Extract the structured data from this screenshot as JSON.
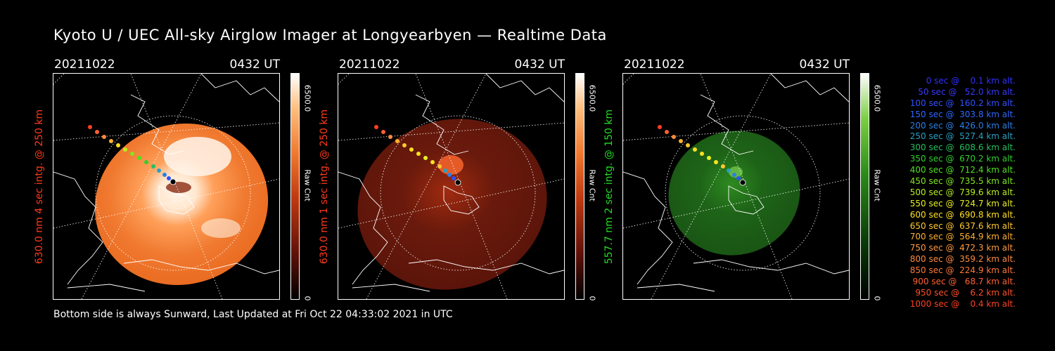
{
  "title": "Kyoto U / UEC All-sky Airglow Imager at Longyearbyen — Realtime Data",
  "footer": "Bottom side is always Sunward, Last Updated at Fri Oct 22 04:33:02 2021 in UTC",
  "panels": [
    {
      "date": "20211022",
      "time": "0432 UT",
      "ylabel": "630.0 nm 4 sec intg. @ 250 km",
      "ylabel_color": "#ff3a1a",
      "cbar_max": "6500.0",
      "cbar_unit": "Raw Cnt",
      "cbar_min": "0",
      "theme": "orange"
    },
    {
      "date": "20211022",
      "time": "0432 UT",
      "ylabel": "630.0 nm 1 sec intg. @ 250 km",
      "ylabel_color": "#ff3a1a",
      "cbar_max": "6500.0",
      "cbar_unit": "Raw Cnt",
      "cbar_min": "0",
      "theme": "darkred"
    },
    {
      "date": "20211022",
      "time": "0432 UT",
      "ylabel": "557.7 nm 2 sec intg. @ 150 km",
      "ylabel_color": "#22dd22",
      "cbar_max": "6500.0",
      "cbar_unit": "Raw Cnt",
      "cbar_min": "0",
      "theme": "green"
    }
  ],
  "legend": [
    {
      "text": "0 sec @    0.1 km alt.",
      "color": "#3030ff"
    },
    {
      "text": "50 sec @   52.0 km alt.",
      "color": "#3838ff"
    },
    {
      "text": "100 sec @  160.2 km alt.",
      "color": "#3050ff"
    },
    {
      "text": "150 sec @  303.8 km alt.",
      "color": "#3068ff"
    },
    {
      "text": "200 sec @  426.0 km alt.",
      "color": "#2c7fe6"
    },
    {
      "text": "250 sec @  527.4 km alt.",
      "color": "#2aa0c0"
    },
    {
      "text": "300 sec @  608.6 km alt.",
      "color": "#22c060"
    },
    {
      "text": "350 sec @  670.2 km alt.",
      "color": "#30d030"
    },
    {
      "text": "400 sec @  712.4 km alt.",
      "color": "#50e020"
    },
    {
      "text": "450 sec @  735.5 km alt.",
      "color": "#80e820"
    },
    {
      "text": "500 sec @  739.6 km alt.",
      "color": "#b8f020"
    },
    {
      "text": "550 sec @  724.7 km alt.",
      "color": "#e8f020"
    },
    {
      "text": "600 sec @  690.8 km alt.",
      "color": "#ffe020"
    },
    {
      "text": "650 sec @  637.6 km alt.",
      "color": "#ffc830"
    },
    {
      "text": "700 sec @  564.9 km alt.",
      "color": "#ffb030"
    },
    {
      "text": "750 sec @  472.3 km alt.",
      "color": "#ff9a40"
    },
    {
      "text": "800 sec @  359.2 km alt.",
      "color": "#ff8a40"
    },
    {
      "text": "850 sec @  224.9 km alt.",
      "color": "#ff7838"
    },
    {
      "text": "900 sec @   68.7 km alt.",
      "color": "#ff6030"
    },
    {
      "text": "950 sec @    6.2 km alt.",
      "color": "#ff5028"
    },
    {
      "text": "1000 sec @    0.4 km alt.",
      "color": "#ff4020"
    }
  ]
}
